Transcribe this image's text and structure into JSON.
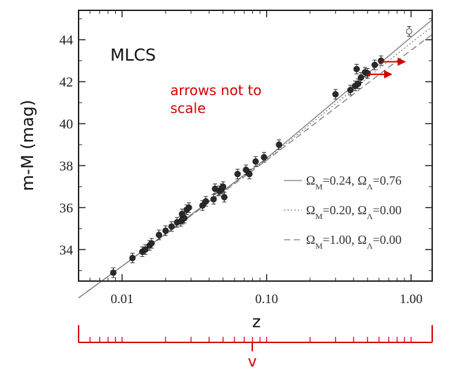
{
  "chart_data": {
    "type": "scatter",
    "title": "",
    "panel_label": "MLCS",
    "xlabel": "z",
    "ylabel": "m-M (mag)",
    "xscale": "log",
    "xlim": [
      0.005,
      1.4
    ],
    "ylim": [
      32.5,
      45.4
    ],
    "grid": false,
    "yticks": [
      34,
      36,
      38,
      40,
      42,
      44
    ],
    "xticks": [
      0.01,
      0.1,
      1.0
    ],
    "xtick_labels": [
      "0.01",
      "0.10",
      "1.00"
    ],
    "legend_position": "bottom-right",
    "series": [
      {
        "marker": "filled-circle",
        "points": [
          {
            "x": 0.0087,
            "y": 32.9
          },
          {
            "x": 0.0118,
            "y": 33.6
          },
          {
            "x": 0.0138,
            "y": 33.9
          },
          {
            "x": 0.0145,
            "y": 34.0
          },
          {
            "x": 0.0155,
            "y": 34.2
          },
          {
            "x": 0.016,
            "y": 34.3
          },
          {
            "x": 0.018,
            "y": 34.7
          },
          {
            "x": 0.02,
            "y": 34.9
          },
          {
            "x": 0.022,
            "y": 35.1
          },
          {
            "x": 0.024,
            "y": 35.3
          },
          {
            "x": 0.0255,
            "y": 35.35
          },
          {
            "x": 0.0262,
            "y": 35.45
          },
          {
            "x": 0.027,
            "y": 35.5
          },
          {
            "x": 0.026,
            "y": 35.7
          },
          {
            "x": 0.028,
            "y": 35.9
          },
          {
            "x": 0.029,
            "y": 36.0
          },
          {
            "x": 0.036,
            "y": 36.1
          },
          {
            "x": 0.038,
            "y": 36.3
          },
          {
            "x": 0.043,
            "y": 36.4
          },
          {
            "x": 0.044,
            "y": 36.9
          },
          {
            "x": 0.047,
            "y": 36.8
          },
          {
            "x": 0.049,
            "y": 36.9
          },
          {
            "x": 0.05,
            "y": 37.0
          },
          {
            "x": 0.051,
            "y": 36.5
          },
          {
            "x": 0.063,
            "y": 37.6
          },
          {
            "x": 0.072,
            "y": 37.8
          },
          {
            "x": 0.076,
            "y": 37.6
          },
          {
            "x": 0.084,
            "y": 38.2
          },
          {
            "x": 0.096,
            "y": 38.4
          },
          {
            "x": 0.122,
            "y": 39.0
          },
          {
            "x": 0.3,
            "y": 41.4
          },
          {
            "x": 0.38,
            "y": 41.6
          },
          {
            "x": 0.41,
            "y": 41.8
          },
          {
            "x": 0.43,
            "y": 41.9
          },
          {
            "x": 0.42,
            "y": 42.6
          },
          {
            "x": 0.45,
            "y": 42.2
          },
          {
            "x": 0.48,
            "y": 42.45
          },
          {
            "x": 0.5,
            "y": 42.4
          },
          {
            "x": 0.56,
            "y": 42.8
          },
          {
            "x": 0.62,
            "y": 43.0
          }
        ]
      },
      {
        "marker": "open-circle",
        "points": [
          {
            "x": 0.97,
            "y": 44.4
          }
        ]
      }
    ],
    "model_curves": [
      {
        "label_parts": [
          "Ω",
          "M",
          "=0.24, Ω",
          "Λ",
          "=0.76"
        ],
        "style": "solid",
        "points": [
          [
            0.005,
            31.7
          ],
          [
            0.01,
            33.21
          ],
          [
            0.1,
            38.35
          ],
          [
            1.0,
            44.12
          ],
          [
            1.4,
            44.95
          ]
        ]
      },
      {
        "label_parts": [
          "Ω",
          "M",
          "=0.20, Ω",
          "Λ",
          "=0.00"
        ],
        "style": "dotted",
        "points": [
          [
            0.005,
            31.7
          ],
          [
            0.01,
            33.21
          ],
          [
            0.1,
            38.3
          ],
          [
            1.0,
            43.85
          ],
          [
            1.4,
            44.62
          ]
        ]
      },
      {
        "label_parts": [
          "Ω",
          "M",
          "=1.00, Ω",
          "Λ",
          "=0.00"
        ],
        "style": "dashed",
        "points": [
          [
            0.005,
            31.7
          ],
          [
            0.01,
            33.21
          ],
          [
            0.1,
            38.25
          ],
          [
            1.0,
            43.5
          ],
          [
            1.4,
            44.25
          ]
        ]
      }
    ],
    "annotations": {
      "arrows_text_lines": [
        "arrows not to",
        "scale"
      ],
      "arrows": [
        {
          "x": 0.62,
          "y": 42.95
        },
        {
          "x": 0.5,
          "y": 42.35
        }
      ],
      "bottom_axis_label": "v"
    },
    "colors": {
      "data": "#2a2a2a",
      "model": "#7a7a7a",
      "annotation": "#d40000"
    }
  }
}
